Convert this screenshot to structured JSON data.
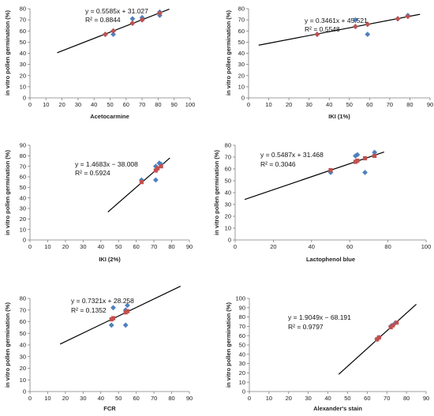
{
  "chart_data": [
    {
      "type": "scatter",
      "xlabel": "Acetocarmine",
      "ylabel": "in vitro pollen germination (%)",
      "xlim": [
        0,
        100
      ],
      "ylim": [
        0,
        80
      ],
      "xticks": [
        0,
        10,
        20,
        30,
        40,
        50,
        60,
        70,
        80,
        90,
        100
      ],
      "yticks": [
        0,
        10,
        20,
        30,
        40,
        50,
        60,
        70,
        80
      ],
      "equation": "y = 0.5585x + 31.027",
      "r2_text": "R² = 0.8844",
      "trend": {
        "slope": 0.5585,
        "intercept": 31.027,
        "x": [
          17,
          87
        ]
      },
      "observed": [
        [
          47,
          57
        ],
        [
          52,
          57
        ],
        [
          52,
          60
        ],
        [
          64,
          71
        ],
        [
          64,
          67
        ],
        [
          70,
          72
        ],
        [
          70,
          70
        ],
        [
          81,
          74
        ],
        [
          81,
          77
        ]
      ],
      "predicted": [
        [
          47,
          57
        ],
        [
          52,
          60
        ],
        [
          64,
          67
        ],
        [
          70,
          70
        ],
        [
          81,
          76
        ]
      ]
    },
    {
      "type": "scatter",
      "xlabel": "IKI (1%)",
      "ylabel": "in vitro pollen germination (%)",
      "xlim": [
        0,
        90
      ],
      "ylim": [
        0,
        80
      ],
      "xticks": [
        0,
        10,
        20,
        30,
        40,
        50,
        60,
        70,
        80,
        90
      ],
      "yticks": [
        0,
        10,
        20,
        30,
        40,
        50,
        60,
        70,
        80
      ],
      "equation": "y = 0.3461x + 45.521",
      "r2_text": "R² = 0.5548",
      "trend": {
        "slope": 0.3461,
        "intercept": 45.521,
        "x": [
          5,
          85
        ]
      },
      "observed": [
        [
          34,
          57
        ],
        [
          53,
          70
        ],
        [
          53,
          64
        ],
        [
          59,
          57
        ],
        [
          59,
          66
        ],
        [
          74,
          71
        ],
        [
          79,
          74
        ]
      ],
      "predicted": [
        [
          34,
          57
        ],
        [
          53,
          64
        ],
        [
          59,
          66
        ],
        [
          74,
          71
        ],
        [
          79,
          73
        ]
      ]
    },
    {
      "type": "scatter",
      "xlabel": "IKI (2%)",
      "ylabel": "in vitro pollen germination (%)",
      "xlim": [
        0,
        90
      ],
      "ylim": [
        0,
        90
      ],
      "xticks": [
        0,
        10,
        20,
        30,
        40,
        50,
        60,
        70,
        80,
        90
      ],
      "yticks": [
        0,
        10,
        20,
        30,
        40,
        50,
        60,
        70,
        80,
        90
      ],
      "equation": "y = 1.4683x − 38.008",
      "r2_text": "R² = 0.5924",
      "trend": {
        "slope": 1.4683,
        "intercept": -38.008,
        "x": [
          44,
          79
        ]
      },
      "observed": [
        [
          63,
          57
        ],
        [
          71,
          57
        ],
        [
          71,
          70
        ],
        [
          73,
          73
        ],
        [
          74,
          72
        ]
      ],
      "predicted": [
        [
          63,
          55
        ],
        [
          71,
          66
        ],
        [
          72,
          68
        ],
        [
          74,
          70
        ]
      ]
    },
    {
      "type": "scatter",
      "xlabel": "Lactophenol blue",
      "ylabel": "in vitro pollen germination (%)",
      "xlim": [
        0,
        100
      ],
      "ylim": [
        0,
        80
      ],
      "xticks": [
        0,
        20,
        40,
        60,
        80,
        100
      ],
      "yticks": [
        0,
        10,
        20,
        30,
        40,
        50,
        60,
        70,
        80
      ],
      "equation": "y = 0.5487x + 31.468",
      "r2_text": "R² = 0.3046",
      "trend": {
        "slope": 0.5487,
        "intercept": 31.468,
        "x": [
          5,
          78
        ]
      },
      "observed": [
        [
          50,
          57
        ],
        [
          63,
          71
        ],
        [
          64,
          72
        ],
        [
          68,
          57
        ],
        [
          73,
          74
        ]
      ],
      "predicted": [
        [
          50,
          59
        ],
        [
          63,
          66
        ],
        [
          64,
          67
        ],
        [
          68,
          69
        ],
        [
          73,
          71
        ]
      ]
    },
    {
      "type": "scatter",
      "xlabel": "FCR",
      "ylabel": "in vitro pollen germination (%)",
      "xlim": [
        0,
        90
      ],
      "ylim": [
        0,
        80
      ],
      "xticks": [
        0,
        10,
        20,
        30,
        40,
        50,
        60,
        70,
        80,
        90
      ],
      "yticks": [
        0,
        10,
        20,
        30,
        40,
        50,
        60,
        70,
        80
      ],
      "equation": "y = 0.7321x + 28.258",
      "r2_text": "R² = 0.1352",
      "trend": {
        "slope": 0.7321,
        "intercept": 28.258,
        "x": [
          17,
          85
        ]
      },
      "observed": [
        [
          46,
          57
        ],
        [
          47,
          72
        ],
        [
          54,
          57
        ],
        [
          55,
          74
        ],
        [
          54,
          70
        ]
      ],
      "predicted": [
        [
          46,
          62
        ],
        [
          47,
          63
        ],
        [
          54,
          68
        ],
        [
          55,
          69
        ]
      ]
    },
    {
      "type": "scatter",
      "xlabel": "Alexander's stain",
      "ylabel": "in vitro pollen germination (%)",
      "xlim": [
        0,
        90
      ],
      "ylim": [
        0,
        100
      ],
      "xticks": [
        0,
        10,
        20,
        30,
        40,
        50,
        60,
        70,
        80,
        90
      ],
      "yticks": [
        0,
        10,
        20,
        30,
        40,
        50,
        60,
        70,
        80,
        90,
        100
      ],
      "equation": "y = 1.9049x − 68.191",
      "r2_text": "R² = 0.9797",
      "trend": {
        "slope": 1.9049,
        "intercept": -68.191,
        "x": [
          45.5,
          85
        ]
      },
      "observed": [
        [
          65,
          56
        ],
        [
          66,
          58
        ],
        [
          72,
          70
        ],
        [
          74,
          73
        ]
      ],
      "predicted": [
        [
          65,
          56
        ],
        [
          66,
          58
        ],
        [
          72,
          69
        ],
        [
          73,
          71
        ],
        [
          75,
          74
        ]
      ]
    }
  ]
}
